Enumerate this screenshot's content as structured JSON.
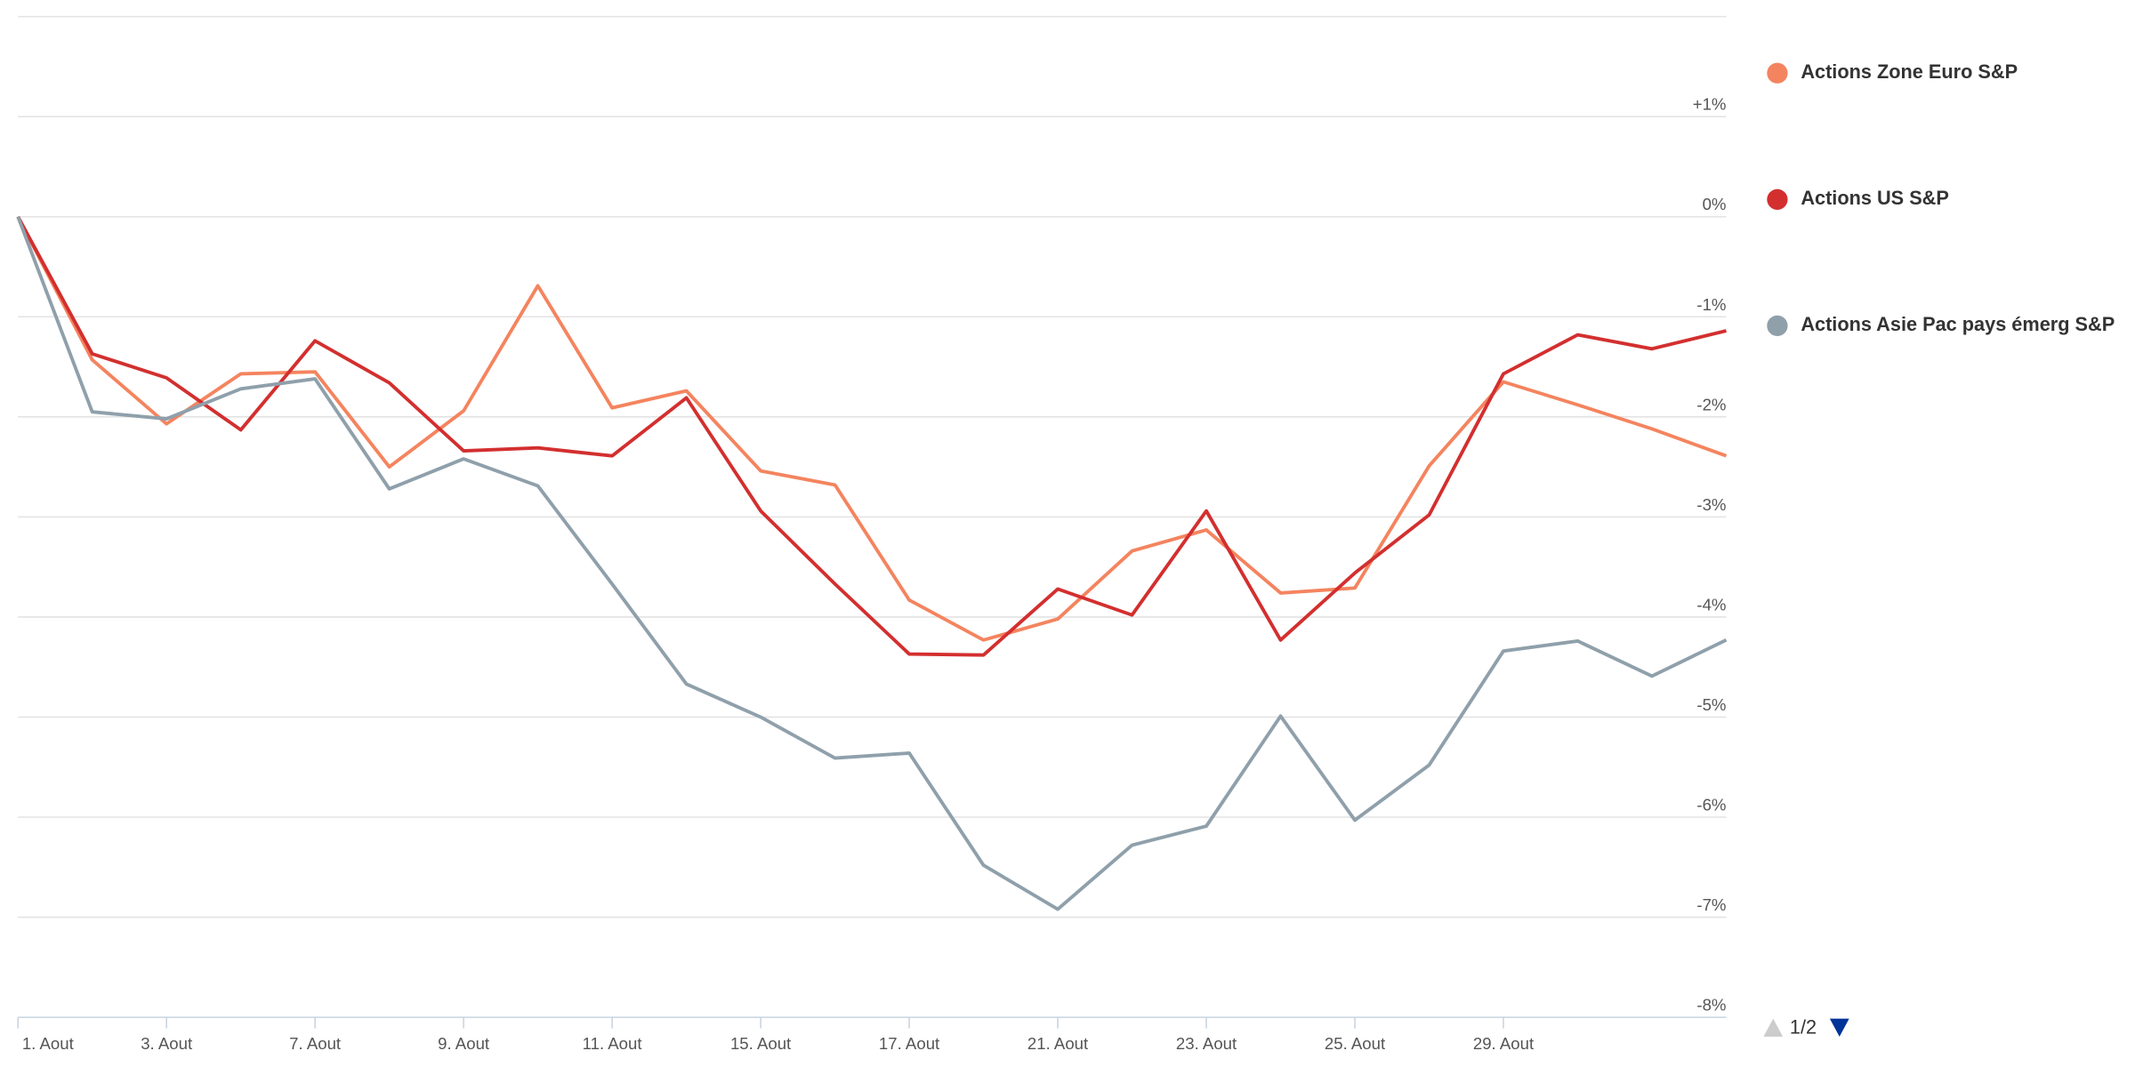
{
  "chart_data": {
    "type": "line",
    "categories": [
      "1. Aout",
      null,
      "3. Aout",
      null,
      "7. Aout",
      null,
      "9. Aout",
      null,
      "11. Aout",
      null,
      "15. Aout",
      null,
      "17. Aout",
      null,
      "21. Aout",
      null,
      "23. Aout",
      null,
      "25. Aout",
      null,
      "29. Aout",
      null,
      null,
      null
    ],
    "series": [
      {
        "name": "Actions Zone Euro S&P",
        "color": "#f4845f",
        "values": [
          0,
          -1.43,
          -2.07,
          -1.57,
          -1.55,
          -2.5,
          -1.94,
          -0.69,
          -1.91,
          -1.74,
          -2.54,
          -2.68,
          -3.83,
          -4.23,
          -4.02,
          -3.34,
          -3.13,
          -3.76,
          -3.71,
          -2.49,
          -1.65,
          -1.88,
          -2.12,
          -2.39
        ]
      },
      {
        "name": "Actions US S&P",
        "color": "#d32f2f",
        "values": [
          0,
          -1.37,
          -1.61,
          -2.13,
          -1.24,
          -1.66,
          -2.34,
          -2.31,
          -2.39,
          -1.81,
          -2.94,
          -3.67,
          -4.37,
          -4.38,
          -3.72,
          -3.98,
          -2.94,
          -4.23,
          -3.56,
          -2.98,
          -1.57,
          -1.18,
          -1.32,
          -1.14
        ]
      },
      {
        "name": "Actions Asie Pac pays émerg S&P",
        "color": "#8fa0ab",
        "values": [
          0,
          -1.95,
          -2.02,
          -1.72,
          -1.62,
          -2.72,
          -2.42,
          -2.69,
          -3.67,
          -4.67,
          -5.0,
          -5.41,
          -5.36,
          -6.48,
          -6.92,
          -6.28,
          -6.09,
          -4.99,
          -6.03,
          -5.48,
          -4.34,
          -4.24,
          -4.59,
          -4.23
        ]
      }
    ],
    "ylim": [
      -8,
      2
    ],
    "yticks": [
      {
        "value": 1,
        "label": "+1%"
      },
      {
        "value": 0,
        "label": "0%"
      },
      {
        "value": -1,
        "label": "-1%"
      },
      {
        "value": -2,
        "label": "-2%"
      },
      {
        "value": -3,
        "label": "-3%"
      },
      {
        "value": -4,
        "label": "-4%"
      },
      {
        "value": -5,
        "label": "-5%"
      },
      {
        "value": -6,
        "label": "-6%"
      },
      {
        "value": -7,
        "label": "-7%"
      },
      {
        "value": -8,
        "label": "-8%"
      }
    ],
    "grid": true,
    "legend_position": "right",
    "legend_page": "1/2"
  }
}
